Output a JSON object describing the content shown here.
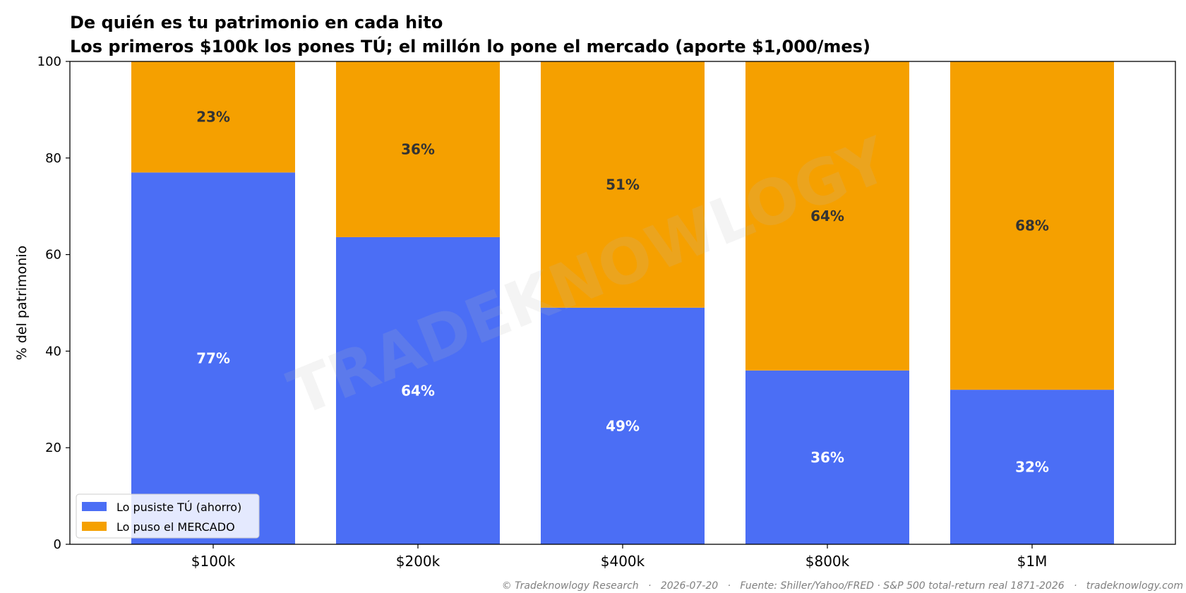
{
  "chart_data": {
    "type": "bar",
    "stacked": true,
    "title": "De quién es tu patrimonio en cada hito",
    "subtitle": "Los primeros $100k los pones TÚ; el millón lo pone el mercado (aporte $1,000/mes)",
    "xlabel": "",
    "ylabel": "% del patrimonio",
    "ylim": [
      0,
      100
    ],
    "yticks": [
      "0",
      "20",
      "40",
      "60",
      "80",
      "100"
    ],
    "categories": [
      "$100k",
      "$200k",
      "$400k",
      "$800k",
      "$1M"
    ],
    "series": [
      {
        "name": "Lo pusiste TÚ (ahorro)",
        "color": "#4b6ef5",
        "label_color": "#ffffff",
        "values": [
          77,
          63.6,
          49,
          36,
          32
        ],
        "labels": [
          "77%",
          "64%",
          "49%",
          "36%",
          "32%"
        ]
      },
      {
        "name": "Lo puso el MERCADO",
        "color": "#f5a000",
        "label_color": "#333333",
        "values": [
          23,
          36.4,
          51,
          64,
          68
        ],
        "labels": [
          "23%",
          "36%",
          "51%",
          "64%",
          "68%"
        ]
      }
    ],
    "legend_position": "lower-left",
    "grid": false
  },
  "watermark": "TRADEKNOWLOGY",
  "footer": "© Tradeknowlogy Research   ·   2026-07-20   ·   Fuente: Shiller/Yahoo/FRED · S&P 500 total-return real 1871-2026   ·   tradeknowlogy.com"
}
